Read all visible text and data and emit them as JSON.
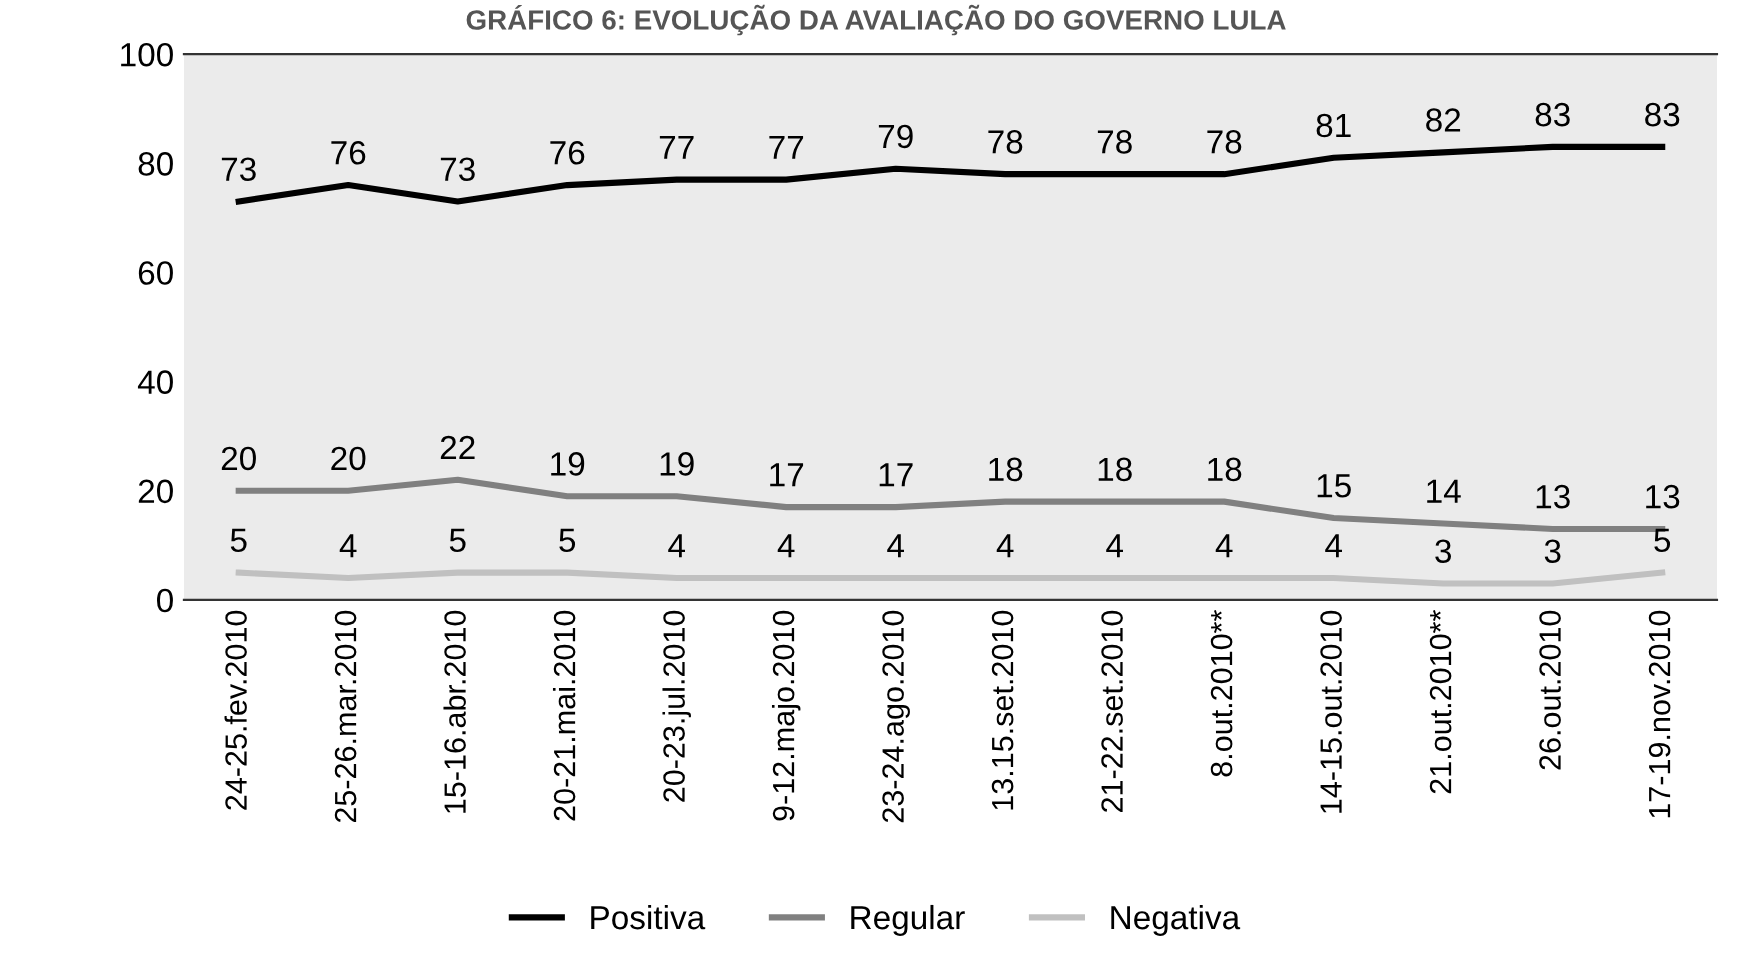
{
  "chart_data": {
    "type": "line",
    "title": "GRÁFICO 6: EVOLUÇÃO DA AVALIAÇÃO DO GOVERNO LULA",
    "categories": [
      "24-25.fev.2010",
      "25-26.mar.2010",
      "15-16.abr.2010",
      "20-21.mai.2010",
      "20-23.jul.2010",
      "9-12.majo.2010",
      "23-24.ago.2010",
      "13.15.set.2010",
      "21-22.set.2010",
      "8.out.2010**",
      "14-15.out.2010",
      "21.out.2010**",
      "26.out.2010",
      "17-19.nov.2010"
    ],
    "series": [
      {
        "name": "Positiva",
        "color": "#000000",
        "values": [
          73,
          76,
          73,
          76,
          77,
          77,
          79,
          78,
          78,
          78,
          81,
          82,
          83,
          83
        ]
      },
      {
        "name": "Regular",
        "color": "#808080",
        "values": [
          20,
          20,
          22,
          19,
          19,
          17,
          17,
          18,
          18,
          18,
          15,
          14,
          13,
          13
        ]
      },
      {
        "name": "Negativa",
        "color": "#c0c0c0",
        "values": [
          5,
          4,
          5,
          5,
          4,
          4,
          4,
          4,
          4,
          4,
          4,
          3,
          3,
          5
        ]
      }
    ],
    "ylim": [
      0,
      100
    ],
    "yticks": [
      0,
      20,
      40,
      60,
      80,
      100
    ],
    "data_labels": true,
    "legend": "bottom",
    "grid": false,
    "marker": "none",
    "line_style": "solid"
  }
}
